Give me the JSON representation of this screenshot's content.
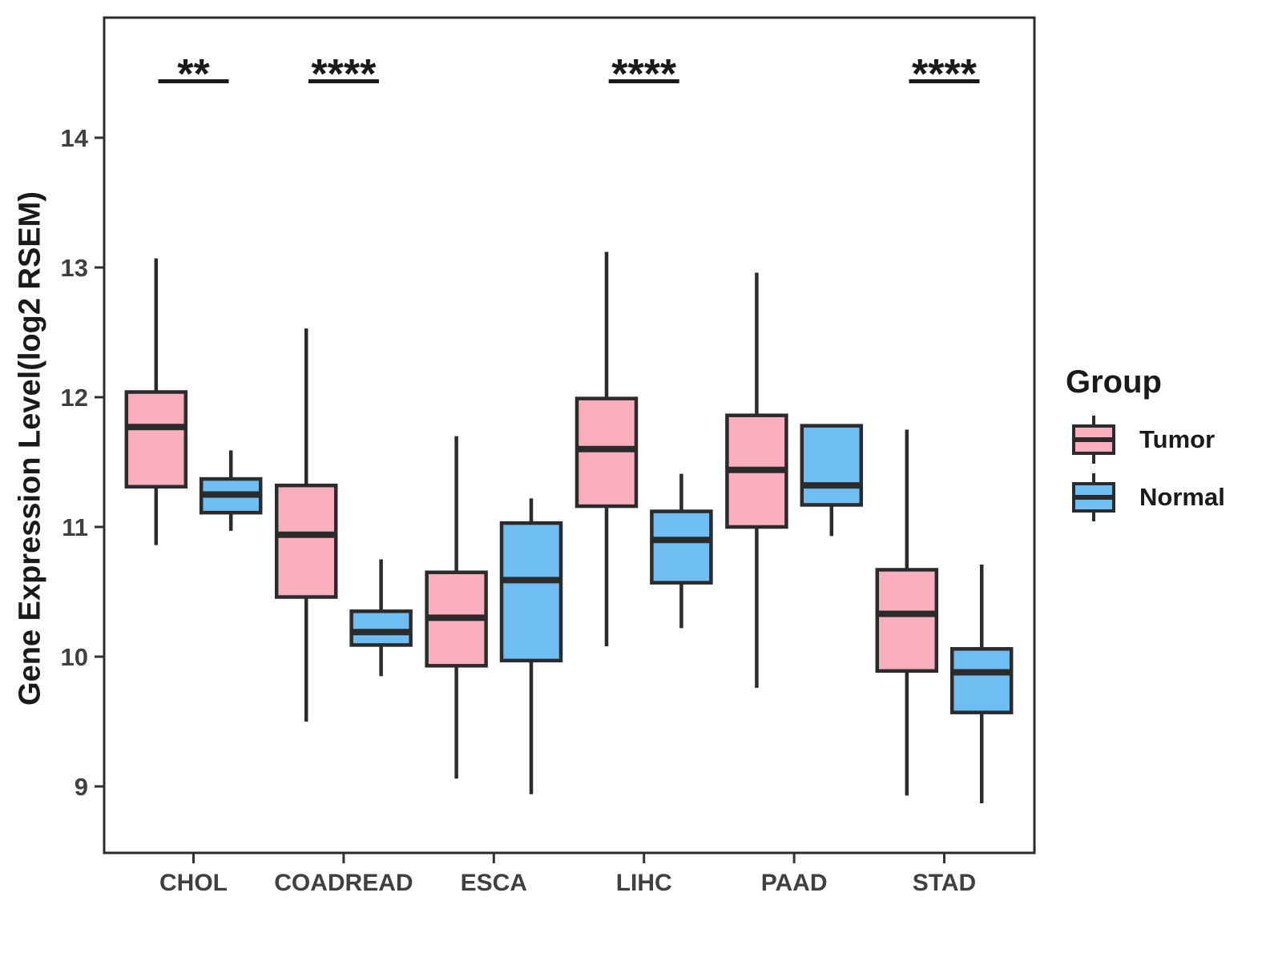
{
  "chart_data": {
    "type": "boxplot",
    "title": "",
    "xlabel": "",
    "ylabel": "Gene Expression Level(log2 RSEM)",
    "y_ticks": [
      9,
      10,
      11,
      12,
      13,
      14
    ],
    "ylim": [
      8.49,
      14.93
    ],
    "grid": false,
    "categories": [
      "CHOL",
      "COADREAD",
      "ESCA",
      "LIHC",
      "PAAD",
      "STAD"
    ],
    "groups": [
      {
        "name": "Tumor",
        "color": "#FAAFBE"
      },
      {
        "name": "Normal",
        "color": "#6FBEF3"
      }
    ],
    "legend": {
      "title": "Group",
      "position": "right"
    },
    "significance": [
      {
        "category": "CHOL",
        "label": "**"
      },
      {
        "category": "COADREAD",
        "label": "****"
      },
      {
        "category": "LIHC",
        "label": "****"
      },
      {
        "category": "STAD",
        "label": "****"
      }
    ],
    "series": [
      {
        "category": "CHOL",
        "group": "Tumor",
        "whisker_low": 10.86,
        "q1": 11.31,
        "median": 11.77,
        "q3": 12.04,
        "whisker_high": 13.07
      },
      {
        "category": "CHOL",
        "group": "Normal",
        "whisker_low": 10.97,
        "q1": 11.11,
        "median": 11.25,
        "q3": 11.37,
        "whisker_high": 11.59
      },
      {
        "category": "COADREAD",
        "group": "Tumor",
        "whisker_low": 9.5,
        "q1": 10.46,
        "median": 10.94,
        "q3": 11.32,
        "whisker_high": 12.53
      },
      {
        "category": "COADREAD",
        "group": "Normal",
        "whisker_low": 9.85,
        "q1": 10.09,
        "median": 10.19,
        "q3": 10.35,
        "whisker_high": 10.75
      },
      {
        "category": "ESCA",
        "group": "Tumor",
        "whisker_low": 9.06,
        "q1": 9.93,
        "median": 10.3,
        "q3": 10.65,
        "whisker_high": 11.7
      },
      {
        "category": "ESCA",
        "group": "Normal",
        "whisker_low": 8.94,
        "q1": 9.97,
        "median": 10.59,
        "q3": 11.03,
        "whisker_high": 11.22
      },
      {
        "category": "LIHC",
        "group": "Tumor",
        "whisker_low": 10.08,
        "q1": 11.16,
        "median": 11.6,
        "q3": 11.99,
        "whisker_high": 13.12
      },
      {
        "category": "LIHC",
        "group": "Normal",
        "whisker_low": 10.22,
        "q1": 10.57,
        "median": 10.9,
        "q3": 11.12,
        "whisker_high": 11.41
      },
      {
        "category": "PAAD",
        "group": "Tumor",
        "whisker_low": 9.76,
        "q1": 11.0,
        "median": 11.44,
        "q3": 11.86,
        "whisker_high": 12.96
      },
      {
        "category": "PAAD",
        "group": "Normal",
        "whisker_low": 10.93,
        "q1": 11.17,
        "median": 11.32,
        "q3": 11.78,
        "whisker_high": 11.78
      },
      {
        "category": "STAD",
        "group": "Tumor",
        "whisker_low": 8.93,
        "q1": 9.89,
        "median": 10.33,
        "q3": 10.67,
        "whisker_high": 11.75
      },
      {
        "category": "STAD",
        "group": "Normal",
        "whisker_low": 8.87,
        "q1": 9.57,
        "median": 9.88,
        "q3": 10.06,
        "whisker_high": 10.71
      }
    ],
    "style": {
      "box_stroke": "#2b2b2b",
      "axis_text_color": "#404040",
      "annotation_color": "#1a1a1a"
    }
  }
}
